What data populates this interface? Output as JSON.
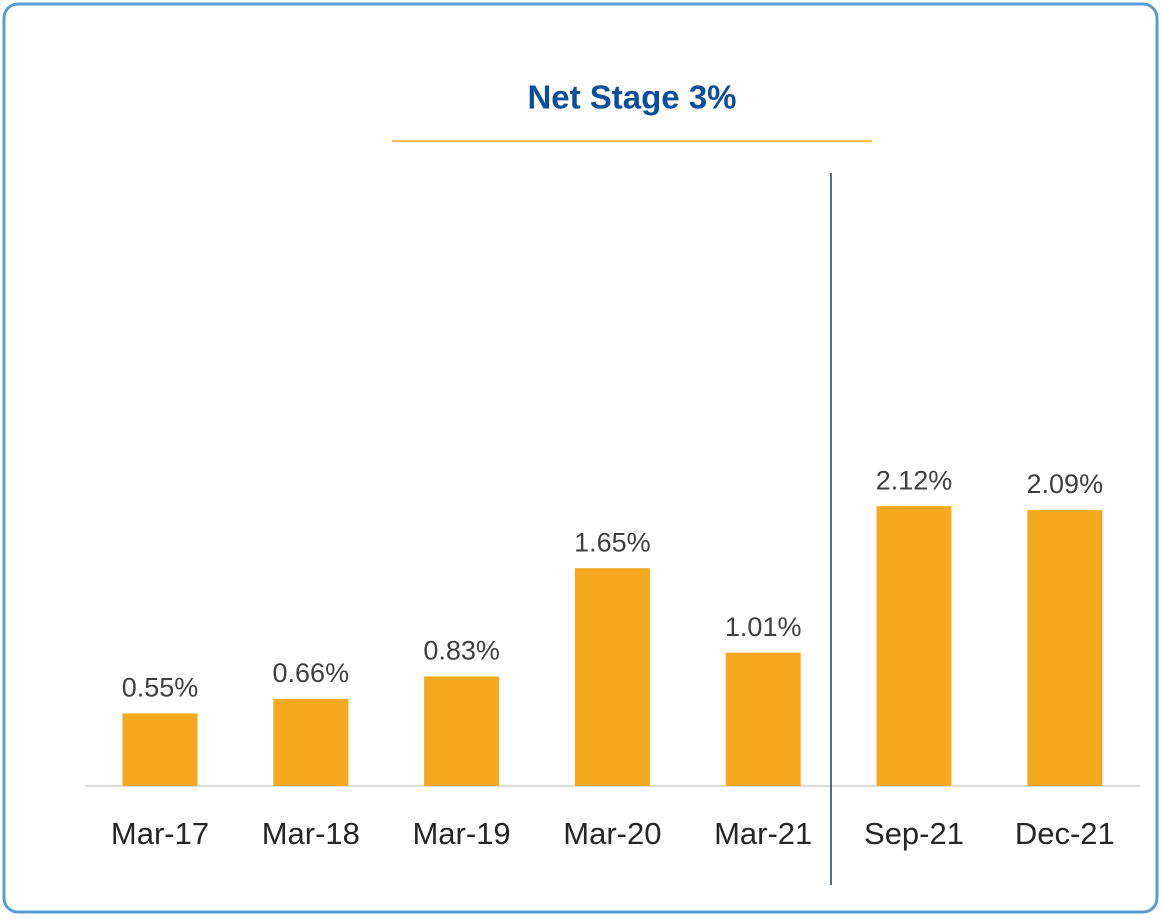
{
  "chart_data": {
    "type": "bar",
    "title": "Net Stage 3%",
    "categories": [
      "Mar-17",
      "Mar-18",
      "Mar-19",
      "Mar-20",
      "Mar-21",
      "Sep-21",
      "Dec-21"
    ],
    "values": [
      0.55,
      0.66,
      0.83,
      1.65,
      1.01,
      2.12,
      2.09
    ],
    "value_labels": [
      "0.55%",
      "0.66%",
      "0.83%",
      "1.65%",
      "1.01%",
      "2.12%",
      "2.09%"
    ],
    "color": "#f6a81e"
  }
}
